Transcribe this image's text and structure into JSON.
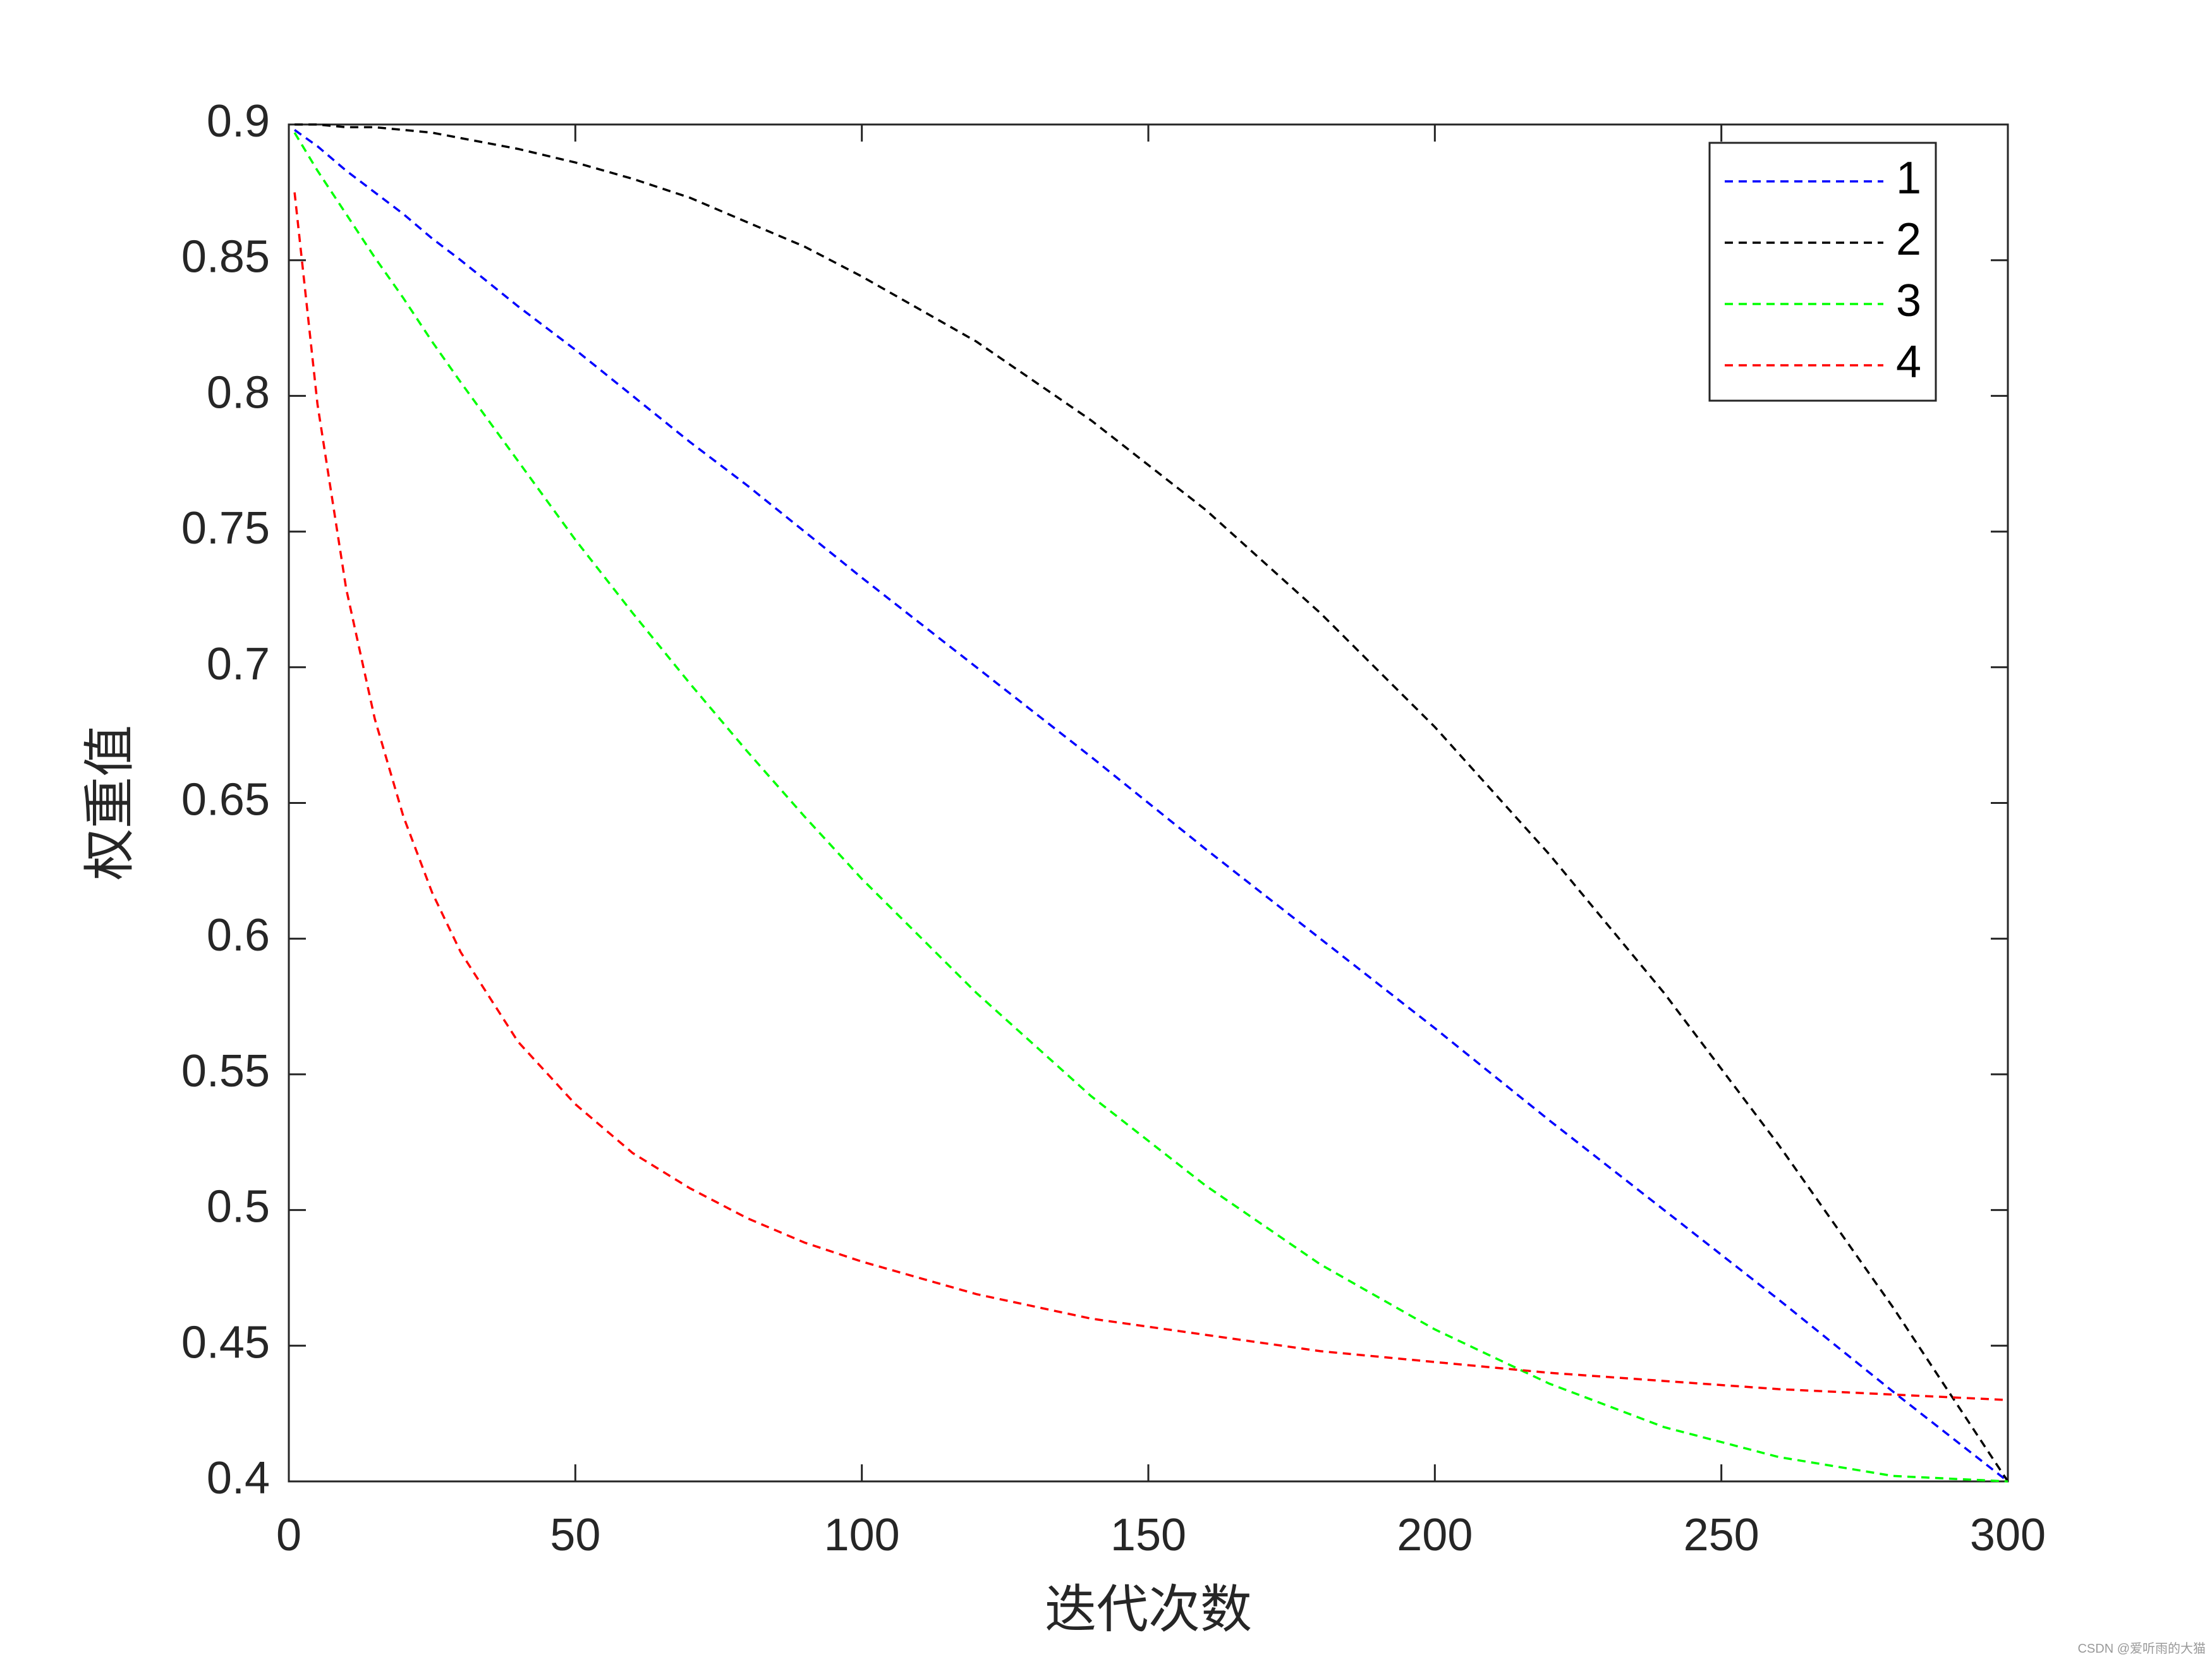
{
  "chart_data": {
    "type": "line",
    "xlabel": "迭代次数",
    "ylabel": "权重值",
    "x": [
      1,
      5,
      10,
      15,
      20,
      25,
      30,
      40,
      50,
      60,
      70,
      80,
      90,
      100,
      120,
      140,
      160,
      180,
      200,
      220,
      240,
      260,
      280,
      300
    ],
    "series": [
      {
        "name": "1",
        "color": "#0000ff",
        "values": [
          0.898,
          0.892,
          0.883,
          0.875,
          0.867,
          0.858,
          0.85,
          0.833,
          0.817,
          0.8,
          0.783,
          0.767,
          0.75,
          0.733,
          0.7,
          0.667,
          0.633,
          0.6,
          0.567,
          0.533,
          0.5,
          0.467,
          0.433,
          0.4
        ]
      },
      {
        "name": "2",
        "color": "#000000",
        "values": [
          0.9,
          0.9,
          0.899,
          0.899,
          0.898,
          0.897,
          0.895,
          0.891,
          0.886,
          0.88,
          0.873,
          0.864,
          0.855,
          0.844,
          0.82,
          0.791,
          0.758,
          0.72,
          0.678,
          0.631,
          0.58,
          0.524,
          0.464,
          0.4
        ]
      },
      {
        "name": "3",
        "color": "#00ff00",
        "values": [
          0.897,
          0.883,
          0.867,
          0.851,
          0.836,
          0.82,
          0.805,
          0.776,
          0.747,
          0.72,
          0.694,
          0.669,
          0.645,
          0.622,
          0.58,
          0.542,
          0.509,
          0.48,
          0.456,
          0.436,
          0.42,
          0.409,
          0.402,
          0.4
        ]
      },
      {
        "name": "4",
        "color": "#ff0000",
        "values": [
          0.875,
          0.797,
          0.729,
          0.681,
          0.645,
          0.617,
          0.595,
          0.562,
          0.539,
          0.521,
          0.508,
          0.497,
          0.488,
          0.481,
          0.469,
          0.46,
          0.454,
          0.448,
          0.444,
          0.44,
          0.437,
          0.434,
          0.432,
          0.43
        ]
      }
    ],
    "xlim": [
      0,
      300
    ],
    "xticks": [
      0,
      50,
      100,
      150,
      200,
      250,
      300
    ],
    "ylim": [
      0.4,
      0.9
    ],
    "yticks": [
      0.4,
      0.45,
      0.5,
      0.55,
      0.6,
      0.65,
      0.7,
      0.75,
      0.8,
      0.85,
      0.9
    ],
    "grid": false,
    "legend": "northeast",
    "line_style": "dashed"
  },
  "watermark": "CSDN @爱听雨的大猫"
}
